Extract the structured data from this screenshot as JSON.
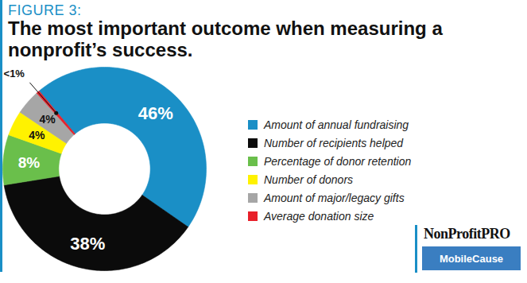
{
  "chart_data": {
    "type": "pie",
    "subtitle": "FIGURE 3:",
    "title": "The most important outcome when measuring a nonprofit’s success.",
    "categories": [
      "Amount of annual fundraising",
      "Number of recipients helped",
      "Percentage of donor retention",
      "Number of donors",
      "Amount of major/legacy gifts",
      "Average donation size"
    ],
    "values": [
      46,
      38,
      8,
      4,
      4,
      0.5
    ],
    "value_labels": [
      "46%",
      "38%",
      "8%",
      "4%",
      "4%",
      "<1%"
    ],
    "colors": [
      "#1a8fc6",
      "#0b0b0b",
      "#6abf4b",
      "#fff200",
      "#a6a6a6",
      "#e8202a"
    ],
    "data_labels": true,
    "legend": "right",
    "annotations": [
      "NonProfitPRO",
      "MobileCause"
    ]
  }
}
